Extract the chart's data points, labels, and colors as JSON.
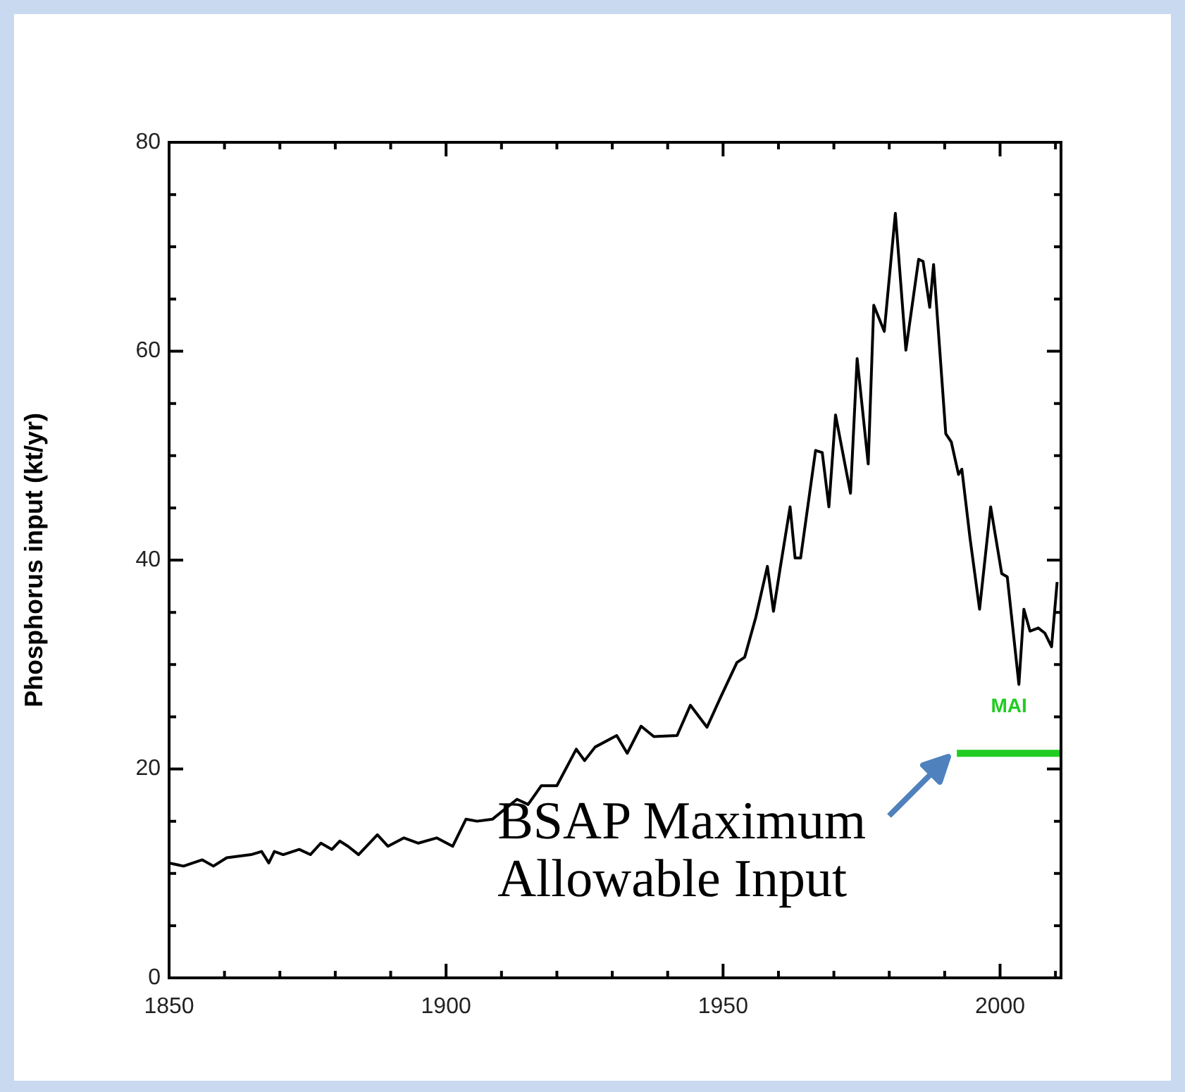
{
  "chart_data": {
    "type": "line",
    "ylabel": "Phosphorus input (kt/yr)",
    "marker": "none",
    "xlim": [
      1850,
      2011
    ],
    "ylim": [
      0,
      80
    ],
    "xticks": [
      1850,
      {
        "value": 1860,
        "label": null
      },
      {
        "value": 1870,
        "label": null
      },
      {
        "value": 1880,
        "label": null
      },
      {
        "value": 1890,
        "label": null
      },
      1900,
      {
        "value": 1910,
        "label": null
      },
      {
        "value": 1920,
        "label": null
      },
      {
        "value": 1930,
        "label": null
      },
      {
        "value": 1940,
        "label": null
      },
      1950,
      {
        "value": 1960,
        "label": null
      },
      {
        "value": 1970,
        "label": null
      },
      {
        "value": 1980,
        "label": null
      },
      {
        "value": 1990,
        "label": null
      },
      2000,
      {
        "value": 2010,
        "label": null
      }
    ],
    "yticks": [
      0,
      {
        "value": 5,
        "label": null
      },
      {
        "value": 10,
        "label": null
      },
      {
        "value": 15,
        "label": null
      },
      20,
      {
        "value": 25,
        "label": null
      },
      {
        "value": 30,
        "label": null
      },
      {
        "value": 35,
        "label": null
      },
      40,
      {
        "value": 45,
        "label": null
      },
      {
        "value": 50,
        "label": null
      },
      {
        "value": 55,
        "label": null
      },
      60,
      {
        "value": 65,
        "label": null
      },
      {
        "value": 70,
        "label": null
      },
      {
        "value": 75,
        "label": null
      },
      80
    ],
    "series": [
      {
        "color": "#000000",
        "x": [
          1850,
          1852.6,
          1856,
          1858,
          1860.4,
          1864.8,
          1866.7,
          1868,
          1869,
          1870.6,
          1873.5,
          1875.5,
          1877.4,
          1879.4,
          1880.8,
          1882.3,
          1884.2,
          1887.6,
          1889.5,
          1892.4,
          1895,
          1898.3,
          1901.2,
          1903.6,
          1905.6,
          1908.4,
          1912.8,
          1914.8,
          1917.2,
          1920,
          1923.5,
          1925,
          1926.9,
          1930.8,
          1932.7,
          1935.2,
          1937.5,
          1941.7,
          1944.1,
          1947.1,
          1949.5,
          1952.5,
          1953.9,
          1955.9,
          1958,
          1959.1,
          1960.3,
          1962.1,
          1963,
          1964,
          1966.7,
          1967.9,
          1969.1,
          1970.3,
          1973,
          1974.2,
          1976.2,
          1977.2,
          1979.1,
          1981.1,
          1983,
          1985.3,
          1986.1,
          1987.3,
          1988,
          1990.2,
          1991.2,
          1992.5,
          1993.1,
          1994.6,
          1996.3,
          1998.3,
          2000.3,
          2001.3,
          2003.4,
          2004.3,
          2005.4,
          2006.9,
          2008.1,
          2009.3,
          2010.3
        ],
        "values": [
          11.0,
          10.7,
          11.3,
          10.7,
          11.5,
          11.8,
          12.1,
          11.0,
          12.1,
          11.8,
          12.3,
          11.8,
          12.9,
          12.3,
          13.1,
          12.6,
          11.8,
          13.7,
          12.6,
          13.4,
          12.9,
          13.4,
          12.6,
          15.2,
          15.0,
          15.2,
          17.1,
          16.6,
          18.4,
          18.4,
          21.9,
          20.8,
          22.1,
          23.2,
          21.5,
          24.1,
          23.1,
          23.2,
          26.1,
          24.0,
          26.8,
          30.2,
          30.7,
          34.5,
          39.4,
          35.1,
          39.2,
          45.1,
          40.2,
          40.2,
          50.5,
          50.3,
          45.1,
          53.9,
          46.4,
          59.3,
          49.2,
          64.4,
          61.9,
          73.2,
          60.1,
          68.8,
          68.6,
          64.2,
          68.3,
          52.1,
          51.3,
          48.2,
          48.7,
          42.0,
          35.3,
          45.1,
          38.7,
          38.4,
          28.1,
          35.3,
          33.2,
          33.5,
          33.0,
          31.7,
          37.9
        ]
      },
      {
        "name": "MAI",
        "type": "line",
        "color": "#22cc22",
        "x": [
          1992.2,
          2011
        ],
        "values": [
          21.5,
          21.5
        ]
      }
    ],
    "annotations": [
      {
        "text": "BSAP Maximum Allowable Input",
        "x": 1992.2,
        "y": 21.5
      }
    ]
  }
}
